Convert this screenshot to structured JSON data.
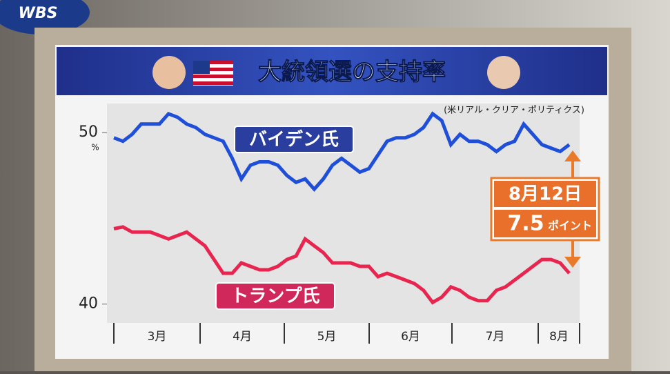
{
  "logo": "WBS",
  "chart_data": {
    "type": "line",
    "title": "大統領選の支持率",
    "source": "(米リアル・クリア・ポリティクス)",
    "unit": "%",
    "months": [
      "3月",
      "4月",
      "5月",
      "6月",
      "7月",
      "8月"
    ],
    "ylim": [
      38.9,
      51.7
    ],
    "yticks": [
      40,
      50
    ],
    "series": [
      {
        "name": "バイデン氏",
        "color": "#1f4fd8",
        "label_color": "#2a3ea0",
        "values": [
          49.7,
          49.5,
          49.9,
          50.5,
          50.5,
          50.5,
          51.1,
          50.9,
          50.5,
          50.3,
          49.9,
          49.7,
          49.5,
          48.5,
          47.3,
          48.1,
          48.3,
          48.3,
          48.1,
          47.5,
          47.1,
          47.3,
          46.7,
          47.3,
          48.1,
          48.5,
          48.1,
          47.7,
          47.9,
          48.7,
          49.5,
          49.7,
          49.7,
          49.9,
          50.3,
          51.1,
          50.7,
          49.3,
          49.9,
          49.5,
          49.5,
          49.3,
          48.9,
          49.3,
          49.5,
          50.5,
          49.9,
          49.3,
          49.1,
          48.9,
          49.3
        ]
      },
      {
        "name": "トランプ氏",
        "color": "#e8254f",
        "label_color": "#d0285a",
        "values": [
          44.4,
          44.5,
          44.2,
          44.2,
          44.2,
          44.0,
          43.8,
          44.0,
          44.2,
          43.8,
          43.4,
          42.6,
          41.8,
          41.8,
          42.4,
          42.2,
          42.0,
          42.0,
          42.2,
          42.6,
          42.8,
          43.8,
          43.4,
          43.0,
          42.4,
          42.4,
          42.4,
          42.2,
          42.2,
          41.6,
          41.8,
          41.6,
          41.4,
          41.2,
          40.8,
          40.1,
          40.4,
          41.0,
          40.8,
          40.4,
          40.2,
          40.2,
          40.8,
          41.0,
          41.4,
          41.8,
          42.2,
          42.6,
          42.6,
          42.4,
          41.8
        ]
      }
    ],
    "annotation": {
      "date": "8月12日",
      "gap": "7.5",
      "gap_unit": "ポイント"
    }
  }
}
